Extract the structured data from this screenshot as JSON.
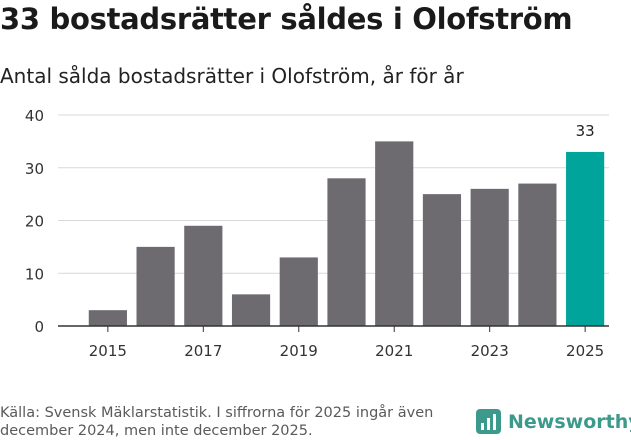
{
  "title": "33 bostadsrätter såldes i Olofström",
  "subtitle": "Antal sålda bostadsrätter i Olofström, år för år",
  "footer": {
    "source": "Källa: Svensk Mäklarstatistik. I siffrorna för 2025 ingår även december 2024, men inte december 2025."
  },
  "brand": {
    "name": "Newsworthy"
  },
  "colors": {
    "bar": "#6d6b70",
    "highlight": "#00a49a",
    "grid": "#d9d9d9",
    "axis": "#333333"
  },
  "chart_data": {
    "type": "bar",
    "title": "33 bostadsrätter såldes i Olofström",
    "subtitle": "Antal sålda bostadsrätter i Olofström, år för år",
    "xlabel": "",
    "ylabel": "",
    "categories": [
      "2015",
      "2016",
      "2017",
      "2018",
      "2019",
      "2020",
      "2021",
      "2022",
      "2023",
      "2024",
      "2025"
    ],
    "values": [
      3,
      15,
      19,
      6,
      13,
      28,
      35,
      25,
      26,
      27,
      33
    ],
    "x_tick_labels": [
      "2015",
      "2017",
      "2019",
      "2021",
      "2023",
      "2025"
    ],
    "y_ticks": [
      0,
      10,
      20,
      30,
      40
    ],
    "ylim": [
      0,
      40
    ],
    "grid": true,
    "highlight_category": "2025",
    "data_labels": [
      {
        "category": "2025",
        "text": "33"
      }
    ]
  }
}
